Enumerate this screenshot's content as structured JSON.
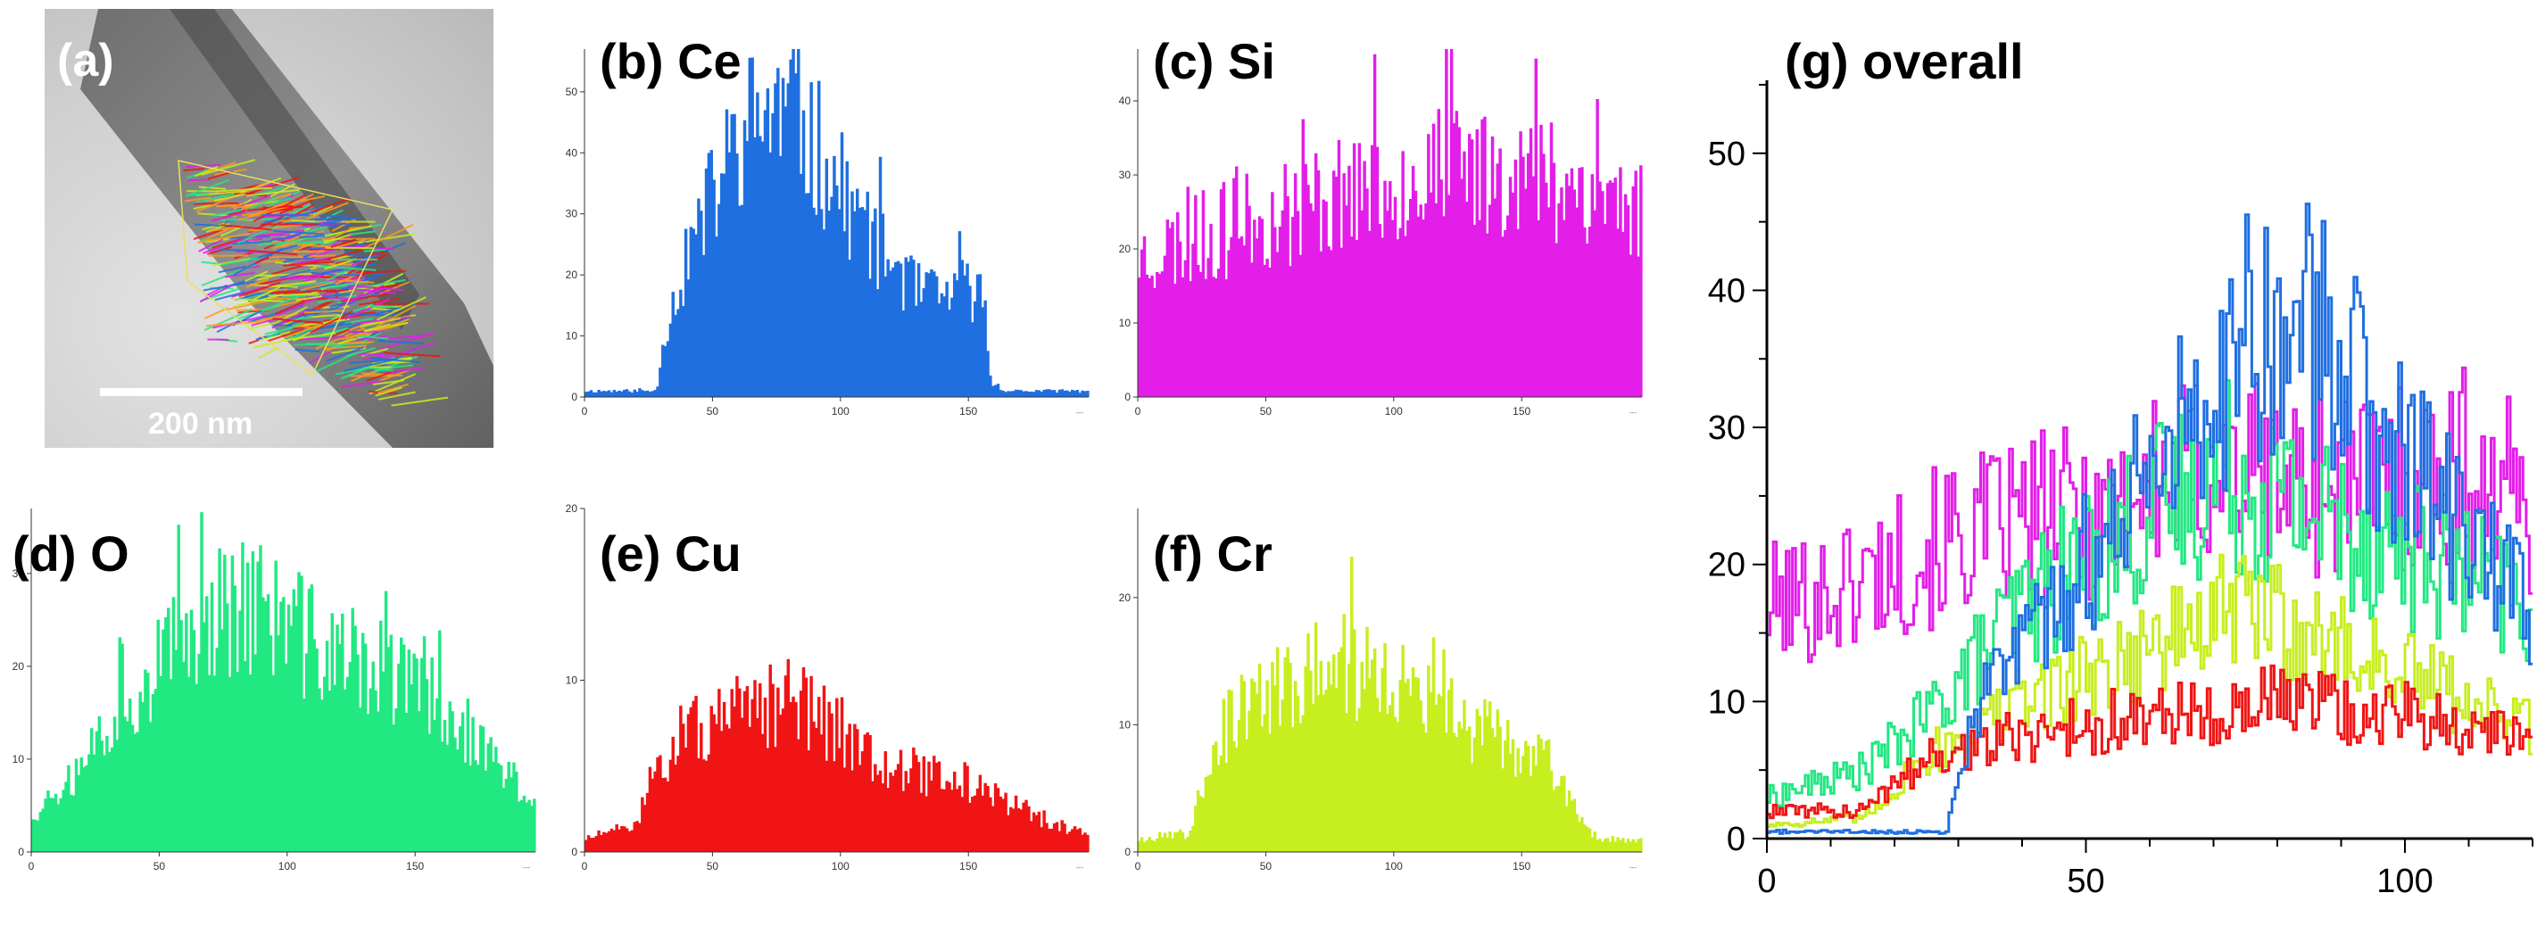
{
  "panels": {
    "a": {
      "label": "(a)",
      "scale_bar": "200 nm"
    },
    "b": {
      "label": "(b) Ce"
    },
    "c": {
      "label": "(c) Si"
    },
    "d": {
      "label": "(d) O"
    },
    "e": {
      "label": "(e) Cu"
    },
    "f": {
      "label": "(f) Cr"
    },
    "g": {
      "label": "(g) overall"
    }
  },
  "axis_unit_mark": "---",
  "colors": {
    "Ce": "#1f6fe0",
    "Si": "#e21ee8",
    "O": "#22e882",
    "Cu": "#f01414",
    "Cr": "#c7ee1e"
  },
  "chart_data": [
    {
      "id": "b",
      "type": "bar",
      "title": "(b) Ce",
      "element": "Ce",
      "color": "#1f6fe0",
      "xlim": [
        0,
        197
      ],
      "ylim": [
        0,
        57
      ],
      "xticks": [
        0,
        50,
        100,
        150
      ],
      "yticks": [
        0,
        10,
        20,
        30,
        40,
        50
      ],
      "profile": [
        [
          0,
          1
        ],
        [
          28,
          1
        ],
        [
          32,
          12
        ],
        [
          40,
          22
        ],
        [
          50,
          33
        ],
        [
          60,
          42
        ],
        [
          70,
          47
        ],
        [
          80,
          46
        ],
        [
          90,
          41
        ],
        [
          100,
          34
        ],
        [
          110,
          27
        ],
        [
          120,
          22
        ],
        [
          130,
          17
        ],
        [
          140,
          16
        ],
        [
          148,
          18
        ],
        [
          156,
          16
        ],
        [
          159,
          2
        ],
        [
          165,
          1
        ],
        [
          197,
          1
        ]
      ]
    },
    {
      "id": "c",
      "type": "bar",
      "title": "(c) Si",
      "element": "Si",
      "color": "#e21ee8",
      "xlim": [
        0,
        197
      ],
      "ylim": [
        0,
        47
      ],
      "xticks": [
        0,
        50,
        100,
        150
      ],
      "yticks": [
        0,
        10,
        20,
        30,
        40
      ],
      "profile": [
        [
          0,
          19
        ],
        [
          20,
          21
        ],
        [
          50,
          24
        ],
        [
          80,
          28
        ],
        [
          100,
          29
        ],
        [
          130,
          31
        ],
        [
          160,
          30
        ],
        [
          180,
          28
        ],
        [
          197,
          25
        ]
      ]
    },
    {
      "id": "d",
      "type": "bar",
      "title": "(d) O",
      "element": "O",
      "color": "#22e882",
      "xlim": [
        0,
        197
      ],
      "ylim": [
        0,
        37
      ],
      "xticks": [
        0,
        50,
        100,
        150
      ],
      "yticks": [
        0,
        10,
        20,
        30
      ],
      "profile": [
        [
          0,
          4
        ],
        [
          15,
          8
        ],
        [
          30,
          14
        ],
        [
          50,
          20
        ],
        [
          70,
          26
        ],
        [
          85,
          27
        ],
        [
          100,
          24
        ],
        [
          120,
          21
        ],
        [
          140,
          19
        ],
        [
          160,
          16
        ],
        [
          180,
          10
        ],
        [
          197,
          5
        ]
      ]
    },
    {
      "id": "e",
      "type": "bar",
      "title": "(e) Cu",
      "element": "Cu",
      "color": "#f01414",
      "xlim": [
        0,
        197
      ],
      "ylim": [
        0,
        20
      ],
      "xticks": [
        0,
        50,
        100,
        150
      ],
      "yticks": [
        0,
        10,
        20
      ],
      "profile": [
        [
          0,
          0.8
        ],
        [
          20,
          1.5
        ],
        [
          28,
          5
        ],
        [
          40,
          7
        ],
        [
          60,
          7.5
        ],
        [
          80,
          9
        ],
        [
          100,
          7
        ],
        [
          120,
          5
        ],
        [
          150,
          4
        ],
        [
          170,
          2.5
        ],
        [
          190,
          1.2
        ],
        [
          197,
          1
        ]
      ]
    },
    {
      "id": "f",
      "type": "bar",
      "title": "(f) Cr",
      "element": "Cr",
      "color": "#c7ee1e",
      "xlim": [
        0,
        197
      ],
      "ylim": [
        0,
        27
      ],
      "xticks": [
        0,
        50,
        100,
        150
      ],
      "yticks": [
        0,
        10,
        20
      ],
      "profile": [
        [
          0,
          1
        ],
        [
          20,
          1.5
        ],
        [
          28,
          8
        ],
        [
          40,
          11
        ],
        [
          60,
          13
        ],
        [
          80,
          15
        ],
        [
          100,
          13
        ],
        [
          130,
          10
        ],
        [
          160,
          7
        ],
        [
          172,
          3
        ],
        [
          180,
          1
        ],
        [
          197,
          1
        ]
      ]
    },
    {
      "id": "g",
      "type": "line",
      "title": "(g) overall",
      "xlim": [
        0,
        120
      ],
      "ylim": [
        0,
        55
      ],
      "xticks": [
        0,
        50,
        100
      ],
      "yticks": [
        0,
        10,
        20,
        30,
        40,
        50
      ],
      "series": [
        {
          "name": "Si",
          "color": "#e21ee8",
          "profile": [
            [
              0,
              17
            ],
            [
              10,
              18
            ],
            [
              20,
              20
            ],
            [
              30,
              22
            ],
            [
              50,
              24
            ],
            [
              70,
              27
            ],
            [
              90,
              26
            ],
            [
              110,
              27
            ],
            [
              120,
              24
            ]
          ]
        },
        {
          "name": "O",
          "color": "#22e882",
          "profile": [
            [
              0,
              3
            ],
            [
              15,
              5
            ],
            [
              25,
              9
            ],
            [
              40,
              17
            ],
            [
              55,
              22
            ],
            [
              70,
              27
            ],
            [
              85,
              24
            ],
            [
              100,
              21
            ],
            [
              115,
              18
            ],
            [
              120,
              16
            ]
          ]
        },
        {
          "name": "Cr",
          "color": "#c7ee1e",
          "profile": [
            [
              0,
              1
            ],
            [
              15,
              1.5
            ],
            [
              25,
              6
            ],
            [
              40,
              10
            ],
            [
              60,
              14
            ],
            [
              75,
              17
            ],
            [
              90,
              14
            ],
            [
              105,
              11
            ],
            [
              120,
              8
            ]
          ]
        },
        {
          "name": "Cu",
          "color": "#f01414",
          "profile": [
            [
              0,
              2
            ],
            [
              15,
              2
            ],
            [
              25,
              6
            ],
            [
              45,
              8
            ],
            [
              60,
              9
            ],
            [
              80,
              10
            ],
            [
              100,
              9
            ],
            [
              120,
              7
            ]
          ]
        },
        {
          "name": "Ce",
          "color": "#1f6fe0",
          "profile": [
            [
              0,
              0.5
            ],
            [
              28,
              0.5
            ],
            [
              32,
              9
            ],
            [
              45,
              17
            ],
            [
              55,
              24
            ],
            [
              65,
              30
            ],
            [
              75,
              38
            ],
            [
              85,
              37
            ],
            [
              95,
              30
            ],
            [
              105,
              25
            ],
            [
              115,
              19
            ],
            [
              120,
              16
            ]
          ]
        }
      ]
    }
  ]
}
